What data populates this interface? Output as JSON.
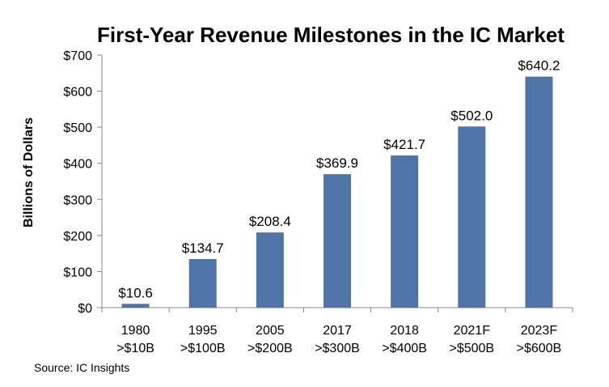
{
  "chart_data": {
    "type": "bar",
    "title": "First-Year Revenue Milestones in the IC Market",
    "xlabel": "",
    "ylabel": "Billions of Dollars",
    "ylim": [
      0,
      700
    ],
    "yticks": [
      "$0",
      "$100",
      "$200",
      "$300",
      "$400",
      "$500",
      "$600",
      "$700"
    ],
    "ytick_values": [
      0,
      100,
      200,
      300,
      400,
      500,
      600,
      700
    ],
    "categories": [
      [
        "1980",
        ">$10B"
      ],
      [
        "1995",
        ">$100B"
      ],
      [
        "2005",
        ">$200B"
      ],
      [
        "2017",
        ">$300B"
      ],
      [
        "2018",
        ">$400B"
      ],
      [
        "2021F",
        ">$500B"
      ],
      [
        "2023F",
        ">$600B"
      ]
    ],
    "values": [
      10.6,
      134.7,
      208.4,
      369.9,
      421.7,
      502.0,
      640.2
    ],
    "data_labels": [
      "$10.6",
      "$134.7",
      "$208.4",
      "$369.9",
      "$421.7",
      "$502.0",
      "$640.2"
    ],
    "bar_color": "#4f74a8",
    "grid": false,
    "legend": "none",
    "source": "Source:  IC Insights"
  }
}
